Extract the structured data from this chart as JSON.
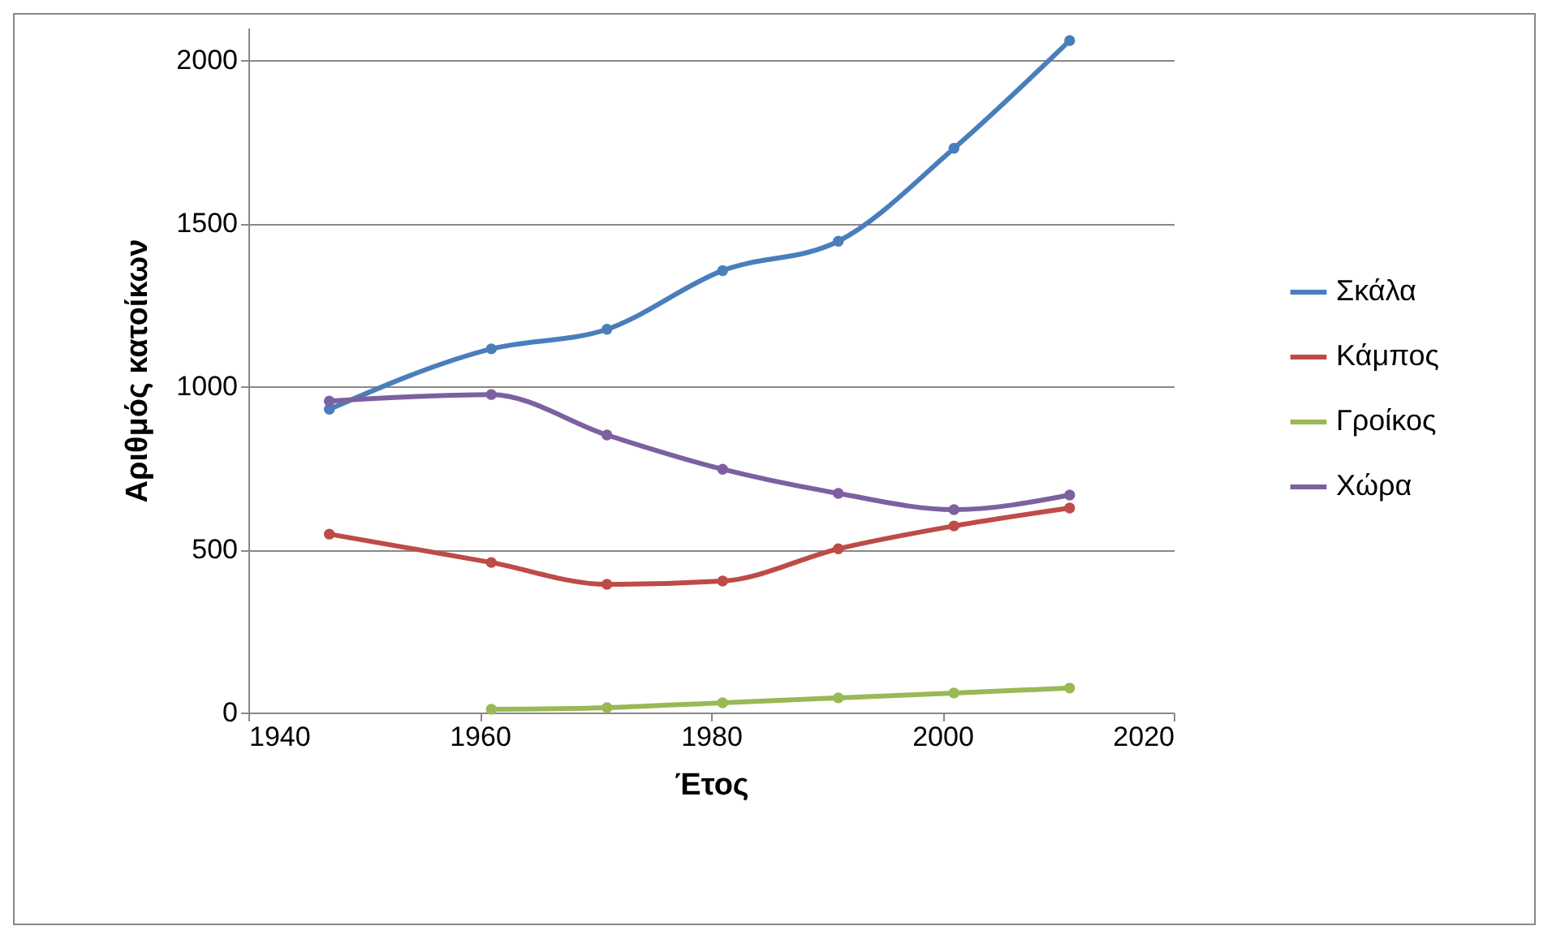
{
  "chart_data": {
    "type": "line",
    "xlabel": "Έτος",
    "ylabel": "Αριθμός κατοίκων",
    "x": [
      1947,
      1961,
      1971,
      1981,
      1991,
      2001,
      2011
    ],
    "series": [
      {
        "name": "Σκάλα",
        "color": "#4a7ebb",
        "values": [
          930,
          1115,
          1175,
          1355,
          1445,
          1730,
          2060
        ]
      },
      {
        "name": "Κάμπος",
        "color": "#be4b48",
        "values": [
          547,
          460,
          393,
          403,
          502,
          572,
          627
        ]
      },
      {
        "name": "Γροίκος",
        "color": "#98b954",
        "values": [
          null,
          10,
          15,
          30,
          45,
          60,
          75
        ]
      },
      {
        "name": "Χώρα",
        "color": "#7d60a0",
        "values": [
          955,
          975,
          851,
          746,
          672,
          622,
          667
        ]
      }
    ],
    "xlim": [
      1940,
      2020
    ],
    "xticks": [
      1940,
      1960,
      1980,
      2000,
      2020
    ],
    "ylim": [
      0,
      2100
    ],
    "yticks": [
      0,
      500,
      1000,
      1500,
      2000
    ],
    "grid": "y",
    "legend": "right",
    "marker": "circle",
    "line_style": "solid"
  }
}
